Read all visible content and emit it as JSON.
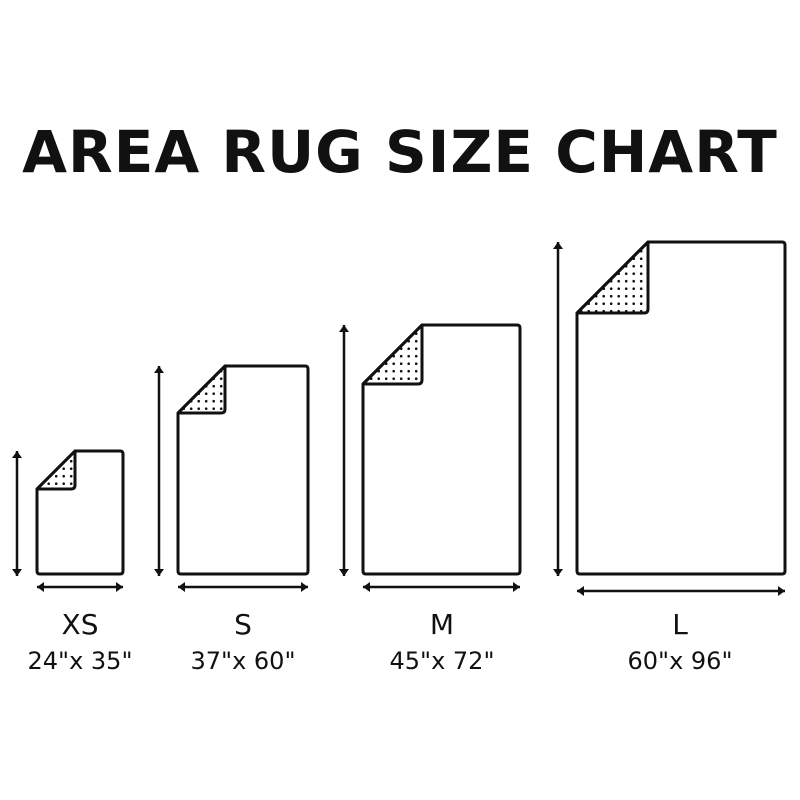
{
  "title": "AREA RUG SIZE CHART",
  "colors": {
    "line": "#111111",
    "background": "#ffffff"
  },
  "rugs": [
    {
      "size": "XS",
      "dimensions": "24\"x 35\"",
      "width_in": 24,
      "length_in": 35
    },
    {
      "size": "S",
      "dimensions": "37\"x 60\"",
      "width_in": 37,
      "length_in": 60
    },
    {
      "size": "M",
      "dimensions": "45\"x 72\"",
      "width_in": 45,
      "length_in": 72
    },
    {
      "size": "L",
      "dimensions": "60\"x 96\"",
      "width_in": 60,
      "length_in": 96
    }
  ]
}
